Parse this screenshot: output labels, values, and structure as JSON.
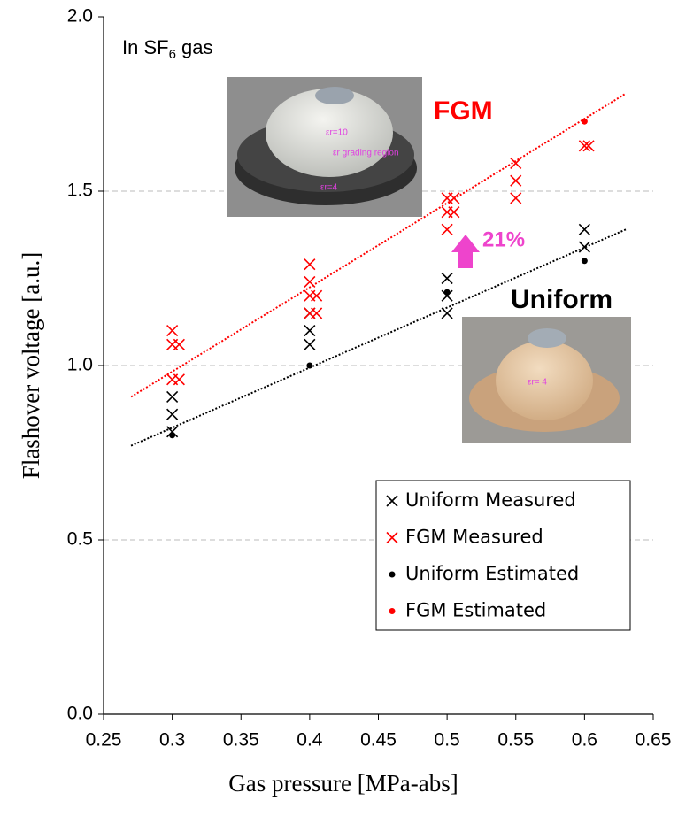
{
  "chart_data": {
    "type": "scatter",
    "xlabel": "Gas pressure [MPa-abs]",
    "ylabel": "Flashover voltage  [a.u.]",
    "xlim": [
      0.25,
      0.65
    ],
    "xticks": [
      0.25,
      0.3,
      0.35,
      0.4,
      0.45,
      0.5,
      0.55,
      0.6,
      0.65
    ],
    "ylim": [
      0,
      2
    ],
    "yticks": [
      {
        "value": 0,
        "label": "0.0"
      },
      0.5,
      {
        "value": 1,
        "label": "1.0"
      },
      1.5,
      {
        "value": 2,
        "label": "2.0"
      }
    ],
    "grid": true,
    "legend": "lower right",
    "series": [
      {
        "name": "Uniform Measured",
        "color": "#000000",
        "marker": "x",
        "x": [
          0.3,
          0.3,
          0.3,
          0.4,
          0.4,
          0.4,
          0.5,
          0.5,
          0.5,
          0.6,
          0.6
        ],
        "values": [
          0.81,
          0.86,
          0.91,
          1.06,
          1.1,
          1.15,
          1.15,
          1.2,
          1.25,
          1.34,
          1.39
        ]
      },
      {
        "name": "FGM Measured",
        "color": "#ff0000",
        "marker": "x",
        "x": [
          0.3,
          0.3,
          0.305,
          0.3,
          0.305,
          0.4,
          0.4,
          0.4,
          0.405,
          0.4,
          0.405,
          0.5,
          0.505,
          0.5,
          0.505,
          0.5,
          0.55,
          0.55,
          0.55,
          0.6,
          0.603
        ],
        "values": [
          1.1,
          1.06,
          1.06,
          0.96,
          0.96,
          1.29,
          1.24,
          1.2,
          1.2,
          1.15,
          1.15,
          1.48,
          1.48,
          1.44,
          1.44,
          1.39,
          1.58,
          1.53,
          1.48,
          1.63,
          1.63
        ]
      },
      {
        "name": "Uniform Estimated",
        "color": "#000000",
        "marker": "dot",
        "x": [
          0.3,
          0.4,
          0.5,
          0.6
        ],
        "values": [
          0.8,
          1.0,
          1.21,
          1.3
        ]
      },
      {
        "name": "FGM Estimated",
        "color": "#ff0000",
        "marker": "dot",
        "x": [
          0.6
        ],
        "values": [
          1.7
        ]
      }
    ],
    "trendlines": [
      {
        "color": "#ff0000",
        "x": [
          0.27,
          0.63
        ],
        "values": [
          0.91,
          1.78
        ]
      },
      {
        "color": "#000000",
        "x": [
          0.27,
          0.63
        ],
        "values": [
          0.77,
          1.39
        ]
      }
    ],
    "annotations": {
      "gas": [
        "In SF",
        "6",
        " gas"
      ],
      "fgm": "FGM",
      "uniform": "Uniform",
      "increase": "21%",
      "fgm_photo": [
        "εr=10",
        "εr grading region",
        "εr=4"
      ],
      "uniform_photo": "εr= 4"
    }
  }
}
